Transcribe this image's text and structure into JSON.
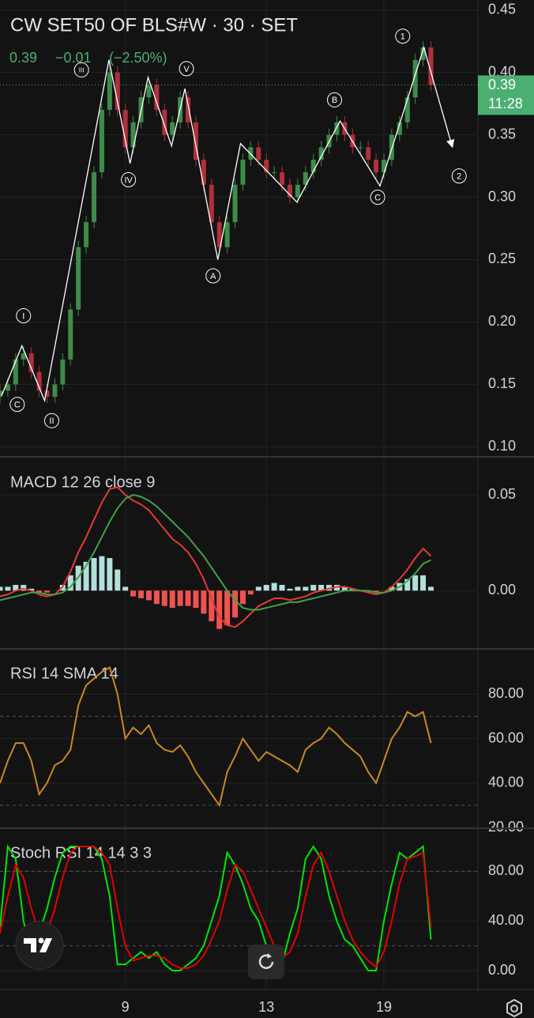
{
  "header": {
    "title": "CW SET50 OF BLS#W · 30 · SET",
    "change": "−0.01",
    "change_pct": "(−2.50%)",
    "countdown": "11:28"
  },
  "chart_data": [
    {
      "type": "candlestick",
      "x": [
        0,
        1,
        2,
        3,
        4,
        5,
        6,
        7,
        8,
        9,
        10,
        11,
        12,
        13,
        14,
        15,
        16,
        17,
        18,
        19,
        20,
        21,
        22,
        23,
        24,
        25,
        26,
        27,
        28,
        29,
        30,
        31,
        32,
        33,
        34,
        35,
        36,
        37,
        38,
        39,
        40,
        41,
        42,
        43,
        44,
        45,
        46,
        47,
        48,
        49,
        50,
        51,
        52,
        53,
        54,
        55
      ],
      "open": [
        0.14,
        0.145,
        0.15,
        0.17,
        0.175,
        0.16,
        0.145,
        0.14,
        0.15,
        0.17,
        0.21,
        0.26,
        0.28,
        0.32,
        0.37,
        0.4,
        0.37,
        0.34,
        0.36,
        0.38,
        0.39,
        0.37,
        0.35,
        0.36,
        0.38,
        0.36,
        0.33,
        0.31,
        0.28,
        0.26,
        0.28,
        0.31,
        0.33,
        0.34,
        0.33,
        0.32,
        0.32,
        0.31,
        0.3,
        0.31,
        0.32,
        0.33,
        0.34,
        0.35,
        0.36,
        0.35,
        0.34,
        0.34,
        0.33,
        0.32,
        0.33,
        0.35,
        0.36,
        0.38,
        0.41,
        0.42
      ],
      "high": [
        0.15,
        0.155,
        0.175,
        0.18,
        0.18,
        0.165,
        0.15,
        0.155,
        0.175,
        0.215,
        0.265,
        0.285,
        0.325,
        0.375,
        0.405,
        0.405,
        0.375,
        0.365,
        0.385,
        0.395,
        0.395,
        0.375,
        0.365,
        0.385,
        0.385,
        0.365,
        0.335,
        0.315,
        0.285,
        0.285,
        0.315,
        0.335,
        0.345,
        0.345,
        0.335,
        0.325,
        0.325,
        0.315,
        0.315,
        0.325,
        0.335,
        0.345,
        0.355,
        0.365,
        0.365,
        0.355,
        0.345,
        0.345,
        0.335,
        0.335,
        0.355,
        0.365,
        0.385,
        0.415,
        0.425,
        0.425
      ],
      "low": [
        0.135,
        0.14,
        0.145,
        0.165,
        0.155,
        0.14,
        0.135,
        0.135,
        0.145,
        0.165,
        0.205,
        0.255,
        0.275,
        0.315,
        0.365,
        0.365,
        0.335,
        0.335,
        0.355,
        0.375,
        0.365,
        0.345,
        0.345,
        0.355,
        0.355,
        0.325,
        0.305,
        0.275,
        0.255,
        0.255,
        0.275,
        0.305,
        0.325,
        0.325,
        0.315,
        0.315,
        0.305,
        0.295,
        0.295,
        0.305,
        0.315,
        0.325,
        0.335,
        0.345,
        0.345,
        0.335,
        0.335,
        0.325,
        0.315,
        0.315,
        0.325,
        0.345,
        0.355,
        0.375,
        0.405,
        0.385
      ],
      "close": [
        0.145,
        0.15,
        0.17,
        0.175,
        0.16,
        0.145,
        0.14,
        0.15,
        0.17,
        0.21,
        0.26,
        0.28,
        0.32,
        0.37,
        0.4,
        0.37,
        0.34,
        0.36,
        0.38,
        0.39,
        0.37,
        0.35,
        0.36,
        0.38,
        0.36,
        0.33,
        0.31,
        0.28,
        0.26,
        0.28,
        0.31,
        0.33,
        0.34,
        0.33,
        0.32,
        0.32,
        0.31,
        0.3,
        0.31,
        0.32,
        0.33,
        0.34,
        0.35,
        0.36,
        0.35,
        0.34,
        0.34,
        0.33,
        0.32,
        0.33,
        0.35,
        0.36,
        0.38,
        0.41,
        0.42,
        0.39
      ],
      "up_color": "#3d8c4a",
      "down_color": "#b0303c",
      "last_price": 0.39,
      "last_color": "#4caf72",
      "xlim": [
        0,
        61
      ],
      "xticks": [
        {
          "value": 16,
          "label": "9"
        },
        {
          "value": 34,
          "label": "13"
        },
        {
          "value": 49,
          "label": "19"
        }
      ],
      "ylim": [
        0.092,
        0.458
      ],
      "yticks": [
        {
          "value": 0.1,
          "label": "0.10"
        },
        {
          "value": 0.15,
          "label": "0.15"
        },
        {
          "value": 0.2,
          "label": "0.20"
        },
        {
          "value": 0.25,
          "label": "0.25"
        },
        {
          "value": 0.3,
          "label": "0.30"
        },
        {
          "value": 0.35,
          "label": "0.35"
        },
        {
          "value": 0.4,
          "label": "0.40"
        },
        {
          "value": 0.45,
          "label": "0.45"
        }
      ],
      "grid": true,
      "wave_line": {
        "x": [
          0.2,
          2.8,
          5.7,
          13.9,
          16.6,
          18.9,
          21.9,
          23.6,
          27.8,
          30.7,
          37.9,
          43.4,
          48.5,
          54.1,
          57.7
        ],
        "values": [
          0.141,
          0.181,
          0.137,
          0.41,
          0.327,
          0.396,
          0.341,
          0.387,
          0.25,
          0.343,
          0.296,
          0.361,
          0.309,
          0.42,
          0.341
        ]
      },
      "annotations": [
        {
          "text": "I",
          "x": 3.0,
          "y": 0.205
        },
        {
          "text": "II",
          "x": 6.6,
          "y": 0.121
        },
        {
          "text": "III",
          "x": 10.4,
          "y": 0.402
        },
        {
          "text": "IV",
          "x": 16.4,
          "y": 0.314
        },
        {
          "text": "V",
          "x": 23.8,
          "y": 0.403
        },
        {
          "text": "A",
          "x": 27.2,
          "y": 0.237
        },
        {
          "text": "B",
          "x": 42.7,
          "y": 0.378
        },
        {
          "text": "C",
          "x": 48.2,
          "y": 0.3
        },
        {
          "text": "C",
          "x": 2.2,
          "y": 0.134
        },
        {
          "text": "1",
          "x": 51.4,
          "y": 0.429
        },
        {
          "text": "2",
          "x": 58.6,
          "y": 0.317
        }
      ]
    },
    {
      "type": "line",
      "title": "MACD 12 26 close 9",
      "ylim": [
        -0.03,
        0.069
      ],
      "yticks": [
        {
          "value": 0,
          "label": "0.00"
        },
        {
          "value": 0.05,
          "label": "0.05"
        }
      ],
      "series": [
        {
          "type": "bar",
          "up_color": "#b2dfdb",
          "down_color": "#ef5350",
          "values": [
            0.002,
            0.002,
            0.003,
            0.003,
            0.001,
            -0.001,
            -0.001,
            0,
            0.003,
            0.008,
            0.013,
            0.015,
            0.017,
            0.018,
            0.017,
            0.011,
            0.002,
            -0.003,
            -0.004,
            -0.005,
            -0.007,
            -0.008,
            -0.009,
            -0.008,
            -0.008,
            -0.009,
            -0.012,
            -0.016,
            -0.02,
            -0.018,
            -0.014,
            -0.007,
            -0.002,
            0.002,
            0.003,
            0.004,
            0.003,
            0.001,
            0.002,
            0.002,
            0.003,
            0.003,
            0.003,
            0.003,
            0.002,
            0.001,
            0,
            -0.001,
            -0.001,
            0,
            0.002,
            0.004,
            0.006,
            0.008,
            0.008,
            0.002
          ]
        },
        {
          "color": "#e53935",
          "values": [
            -0.003,
            -0.002,
            0,
            0.001,
            0,
            -0.002,
            -0.003,
            -0.002,
            0.002,
            0.01,
            0.02,
            0.028,
            0.037,
            0.046,
            0.053,
            0.054,
            0.05,
            0.047,
            0.045,
            0.042,
            0.037,
            0.032,
            0.027,
            0.024,
            0.02,
            0.014,
            0.006,
            -0.004,
            -0.014,
            -0.018,
            -0.019,
            -0.016,
            -0.012,
            -0.008,
            -0.006,
            -0.004,
            -0.004,
            -0.005,
            -0.004,
            -0.003,
            -0.001,
            0,
            0.001,
            0.002,
            0.002,
            0.001,
            0,
            -0.001,
            -0.002,
            -0.001,
            0.002,
            0.006,
            0.011,
            0.017,
            0.022,
            0.018
          ]
        },
        {
          "color": "#43a047",
          "values": [
            -0.005,
            -0.004,
            -0.003,
            -0.002,
            -0.001,
            -0.001,
            -0.002,
            -0.002,
            -0.001,
            0.002,
            0.007,
            0.013,
            0.02,
            0.028,
            0.036,
            0.043,
            0.048,
            0.05,
            0.049,
            0.047,
            0.044,
            0.04,
            0.036,
            0.032,
            0.028,
            0.023,
            0.018,
            0.012,
            0.006,
            0,
            -0.005,
            -0.009,
            -0.01,
            -0.01,
            -0.009,
            -0.008,
            -0.007,
            -0.006,
            -0.006,
            -0.005,
            -0.004,
            -0.003,
            -0.002,
            -0.001,
            0,
            0,
            0,
            0,
            -0.001,
            -0.001,
            0,
            0.002,
            0.005,
            0.009,
            0.014,
            0.016
          ]
        }
      ]
    },
    {
      "type": "line",
      "title": "RSI 14 SMA 14",
      "ylim": [
        20,
        100
      ],
      "bands": [
        70,
        30
      ],
      "yticks": [
        {
          "value": 20,
          "label": "20.00"
        },
        {
          "value": 40,
          "label": "40.00"
        },
        {
          "value": 60,
          "label": "60.00"
        },
        {
          "value": 80,
          "label": "80.00"
        }
      ],
      "series": [
        {
          "color": "#c8891c",
          "values": [
            40,
            50,
            58,
            58,
            50,
            35,
            40,
            48,
            50,
            55,
            75,
            84,
            87,
            90,
            92,
            80,
            60,
            65,
            62,
            66,
            58,
            55,
            54,
            57,
            52,
            45,
            40,
            35,
            30,
            45,
            52,
            60,
            55,
            50,
            54,
            52,
            50,
            48,
            45,
            55,
            58,
            60,
            65,
            62,
            58,
            55,
            52,
            45,
            40,
            50,
            60,
            65,
            72,
            70,
            72,
            58
          ]
        }
      ]
    },
    {
      "type": "line",
      "title": "Stoch RSI 14 14 3 3",
      "ylim": [
        -14,
        114
      ],
      "bands": [
        80,
        20
      ],
      "yticks": [
        {
          "value": 0,
          "label": "0.00"
        },
        {
          "value": 40,
          "label": "40.00"
        },
        {
          "value": 80,
          "label": "80.00"
        }
      ],
      "series": [
        {
          "color": "#00e600",
          "values": [
            35,
            100,
            90,
            40,
            15,
            30,
            50,
            75,
            95,
            100,
            100,
            100,
            100,
            90,
            60,
            5,
            5,
            10,
            15,
            10,
            15,
            5,
            0,
            0,
            5,
            10,
            20,
            40,
            60,
            95,
            85,
            70,
            50,
            40,
            20,
            5,
            5,
            30,
            50,
            90,
            100,
            90,
            60,
            40,
            25,
            20,
            10,
            0,
            0,
            40,
            70,
            95,
            90,
            95,
            100,
            25
          ]
        },
        {
          "color": "#e50000",
          "values": [
            30,
            60,
            85,
            75,
            50,
            30,
            30,
            50,
            75,
            95,
            100,
            100,
            100,
            95,
            85,
            50,
            20,
            8,
            10,
            12,
            12,
            10,
            5,
            2,
            2,
            5,
            12,
            25,
            40,
            65,
            85,
            80,
            65,
            50,
            35,
            20,
            10,
            15,
            30,
            60,
            85,
            95,
            80,
            60,
            40,
            25,
            15,
            8,
            3,
            15,
            40,
            70,
            90,
            92,
            95,
            35
          ]
        }
      ]
    }
  ]
}
